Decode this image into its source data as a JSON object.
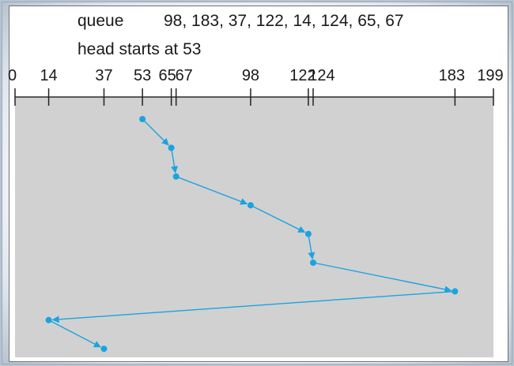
{
  "header": {
    "queue_label": "queue",
    "queue_values": "98, 183, 37, 122, 14, 124, 65, 67",
    "head_line": "head starts at 53"
  },
  "diagram": {
    "axis_min": 0,
    "axis_max": 199,
    "ticks": [
      0,
      14,
      37,
      53,
      65,
      67,
      98,
      122,
      124,
      183,
      199
    ],
    "tick_labels": [
      "0",
      "14",
      "37",
      "53",
      "65",
      "67",
      "98",
      "122",
      "124",
      "183",
      "199"
    ],
    "path": [
      53,
      65,
      67,
      98,
      122,
      124,
      183,
      14,
      37
    ],
    "colors": {
      "path": "#1aa3e0",
      "area": "#d1d1d1",
      "axis": "#222222",
      "text": "#1a1a1a"
    }
  }
}
